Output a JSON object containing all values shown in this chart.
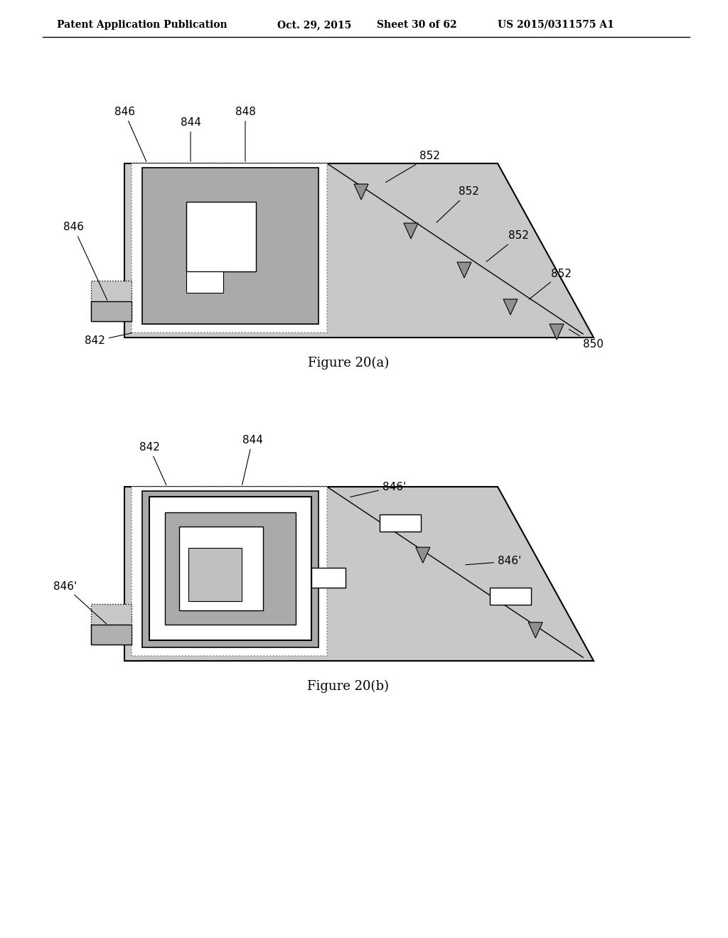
{
  "bg_color": "#ffffff",
  "header_text": "Patent Application Publication",
  "header_date": "Oct. 29, 2015",
  "header_sheet": "Sheet 30 of 62",
  "header_patent": "US 2015/0311575 A1",
  "fig_a_caption": "Figure 20(a)",
  "fig_b_caption": "Figure 20(b)",
  "light_gray": "#c8c8c8",
  "medium_gray": "#b0b0b0",
  "white": "#ffffff",
  "black": "#000000"
}
